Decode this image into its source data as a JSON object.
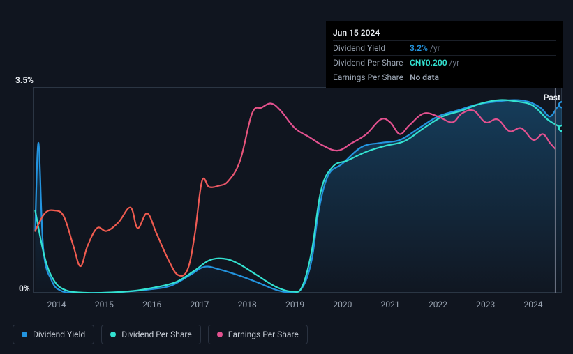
{
  "tooltip": {
    "date": "Jun 15 2024",
    "rows": [
      {
        "label": "Dividend Yield",
        "value": "3.2%",
        "unit": "/yr",
        "color": "#2394df"
      },
      {
        "label": "Dividend Per Share",
        "value": "CN¥0.200",
        "unit": "/yr",
        "color": "#33e1d0"
      },
      {
        "label": "Earnings Per Share",
        "value": "No data",
        "unit": "",
        "color": "#9aa4b2"
      }
    ]
  },
  "y_axis": {
    "max_label": "3.5%",
    "min_label": "0%"
  },
  "past_label": "Past",
  "x_axis": {
    "min": 2013.5,
    "max": 2024.6,
    "ticks": [
      2014,
      2015,
      2016,
      2017,
      2018,
      2019,
      2020,
      2021,
      2022,
      2023,
      2024
    ]
  },
  "chart": {
    "background": "#10151f",
    "ylim": [
      0,
      3.5
    ],
    "cursor_x": 2024.46,
    "gradient_color": "#1a5c8a",
    "series": [
      {
        "name": "Dividend Yield",
        "color": "#2394df",
        "width": 2.2,
        "fill": true,
        "data": [
          [
            2013.55,
            1.05
          ],
          [
            2013.62,
            2.55
          ],
          [
            2013.72,
            0.75
          ],
          [
            2013.9,
            0.2
          ],
          [
            2014.1,
            0.03
          ],
          [
            2014.4,
            0.0
          ],
          [
            2015.0,
            0.0
          ],
          [
            2015.5,
            0.02
          ],
          [
            2016.0,
            0.06
          ],
          [
            2016.4,
            0.12
          ],
          [
            2016.8,
            0.3
          ],
          [
            2017.1,
            0.44
          ],
          [
            2017.4,
            0.4
          ],
          [
            2017.8,
            0.3
          ],
          [
            2018.2,
            0.18
          ],
          [
            2018.6,
            0.05
          ],
          [
            2018.9,
            0.01
          ],
          [
            2019.15,
            0.08
          ],
          [
            2019.35,
            0.55
          ],
          [
            2019.5,
            1.4
          ],
          [
            2019.7,
            2.0
          ],
          [
            2020.0,
            2.2
          ],
          [
            2020.4,
            2.48
          ],
          [
            2020.8,
            2.55
          ],
          [
            2021.2,
            2.6
          ],
          [
            2021.6,
            2.8
          ],
          [
            2022.0,
            3.0
          ],
          [
            2022.4,
            3.1
          ],
          [
            2022.8,
            3.2
          ],
          [
            2023.2,
            3.25
          ],
          [
            2023.6,
            3.28
          ],
          [
            2023.9,
            3.25
          ],
          [
            2024.15,
            3.15
          ],
          [
            2024.35,
            3.0
          ],
          [
            2024.5,
            3.15
          ],
          [
            2024.6,
            3.2
          ]
        ]
      },
      {
        "name": "Dividend Per Share",
        "color": "#33e1d0",
        "width": 2.2,
        "fill": false,
        "data": [
          [
            2013.55,
            1.4
          ],
          [
            2013.75,
            0.6
          ],
          [
            2013.95,
            0.2
          ],
          [
            2014.2,
            0.04
          ],
          [
            2014.6,
            0.0
          ],
          [
            2015.0,
            0.0
          ],
          [
            2015.6,
            0.03
          ],
          [
            2016.0,
            0.08
          ],
          [
            2016.5,
            0.18
          ],
          [
            2016.9,
            0.38
          ],
          [
            2017.2,
            0.55
          ],
          [
            2017.5,
            0.58
          ],
          [
            2017.8,
            0.5
          ],
          [
            2018.2,
            0.3
          ],
          [
            2018.6,
            0.1
          ],
          [
            2018.95,
            0.02
          ],
          [
            2019.15,
            0.1
          ],
          [
            2019.35,
            0.7
          ],
          [
            2019.55,
            1.75
          ],
          [
            2019.8,
            2.15
          ],
          [
            2020.1,
            2.25
          ],
          [
            2020.5,
            2.4
          ],
          [
            2020.9,
            2.5
          ],
          [
            2021.3,
            2.58
          ],
          [
            2021.7,
            2.8
          ],
          [
            2022.1,
            3.0
          ],
          [
            2022.5,
            3.1
          ],
          [
            2022.9,
            3.22
          ],
          [
            2023.3,
            3.28
          ],
          [
            2023.7,
            3.25
          ],
          [
            2024.0,
            3.18
          ],
          [
            2024.3,
            2.95
          ],
          [
            2024.5,
            2.85
          ],
          [
            2024.6,
            2.8
          ]
        ]
      },
      {
        "name": "Earnings Per Share",
        "color_stops": [
          [
            0,
            "#f05b4f"
          ],
          [
            0.3,
            "#f05b4f"
          ],
          [
            0.45,
            "#e3518f"
          ],
          [
            1,
            "#e3518f"
          ]
        ],
        "width": 2.2,
        "fill": false,
        "data": [
          [
            2013.55,
            1.05
          ],
          [
            2013.75,
            1.35
          ],
          [
            2013.95,
            1.4
          ],
          [
            2014.15,
            1.3
          ],
          [
            2014.35,
            0.8
          ],
          [
            2014.5,
            0.45
          ],
          [
            2014.65,
            0.8
          ],
          [
            2014.85,
            1.1
          ],
          [
            2015.05,
            1.05
          ],
          [
            2015.3,
            1.2
          ],
          [
            2015.55,
            1.45
          ],
          [
            2015.7,
            1.1
          ],
          [
            2015.9,
            1.35
          ],
          [
            2016.1,
            1.0
          ],
          [
            2016.35,
            0.55
          ],
          [
            2016.55,
            0.3
          ],
          [
            2016.75,
            0.4
          ],
          [
            2016.9,
            1.0
          ],
          [
            2017.05,
            1.9
          ],
          [
            2017.2,
            1.8
          ],
          [
            2017.4,
            1.82
          ],
          [
            2017.6,
            1.9
          ],
          [
            2017.85,
            2.25
          ],
          [
            2018.1,
            3.05
          ],
          [
            2018.3,
            3.15
          ],
          [
            2018.5,
            3.22
          ],
          [
            2018.7,
            3.1
          ],
          [
            2019.0,
            2.8
          ],
          [
            2019.3,
            2.65
          ],
          [
            2019.6,
            2.5
          ],
          [
            2019.9,
            2.42
          ],
          [
            2020.2,
            2.55
          ],
          [
            2020.5,
            2.7
          ],
          [
            2020.8,
            2.95
          ],
          [
            2021.0,
            2.9
          ],
          [
            2021.2,
            2.7
          ],
          [
            2021.4,
            2.85
          ],
          [
            2021.7,
            3.05
          ],
          [
            2022.0,
            3.0
          ],
          [
            2022.3,
            2.9
          ],
          [
            2022.5,
            3.05
          ],
          [
            2022.75,
            3.1
          ],
          [
            2023.0,
            2.9
          ],
          [
            2023.25,
            2.95
          ],
          [
            2023.5,
            2.75
          ],
          [
            2023.75,
            2.8
          ],
          [
            2024.0,
            2.6
          ],
          [
            2024.2,
            2.7
          ],
          [
            2024.35,
            2.55
          ],
          [
            2024.46,
            2.45
          ]
        ]
      }
    ]
  },
  "legend": [
    {
      "label": "Dividend Yield",
      "color": "#2394df"
    },
    {
      "label": "Dividend Per Share",
      "color": "#33e1d0"
    },
    {
      "label": "Earnings Per Share",
      "color": "#e3518f"
    }
  ]
}
